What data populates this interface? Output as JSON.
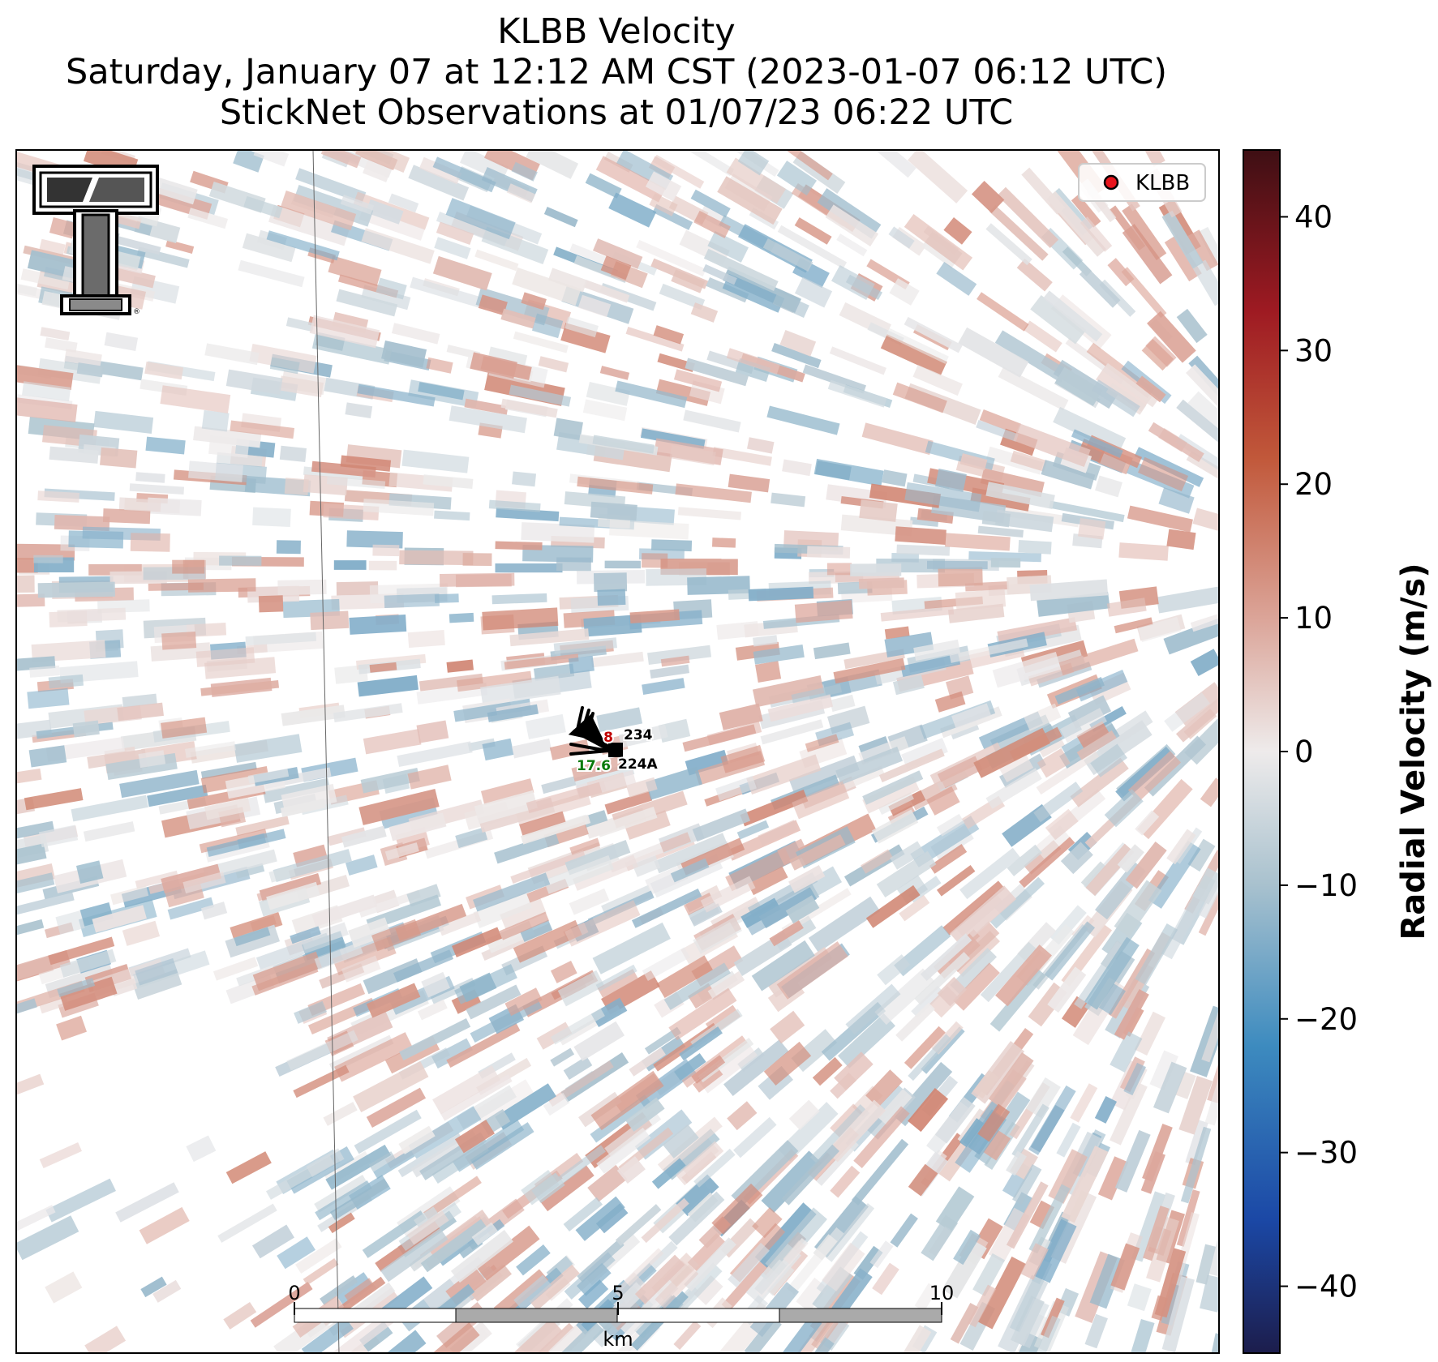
{
  "title": {
    "line1": "KLBB Velocity",
    "line2": "Saturday, January 07 at 12:12 AM CST (2023-01-07 06:12 UTC)",
    "line3": "StickNet Observations at 01/07/23 06:22 UTC"
  },
  "map": {
    "product": "Radial Velocity",
    "radar": "KLBB",
    "logo": "texas-tech-double-t-logo",
    "legend": {
      "entries": [
        {
          "label": "KLBB",
          "marker_color": "#e8141c"
        }
      ],
      "placement": "top-right"
    },
    "observations": [
      {
        "station": "234",
        "value": "8",
        "value_color": "#c00000"
      },
      {
        "station": "224A",
        "value": "17.6",
        "value_color": "#0a7a0a"
      }
    ],
    "scale_bar": {
      "unit": "km",
      "ticks": [
        "0",
        "5",
        "10"
      ]
    }
  },
  "colorbar": {
    "label": "Radial Velocity (m/s)",
    "range": [
      -45,
      45
    ],
    "ticks": [
      {
        "value": 40,
        "label": "40"
      },
      {
        "value": 30,
        "label": "30"
      },
      {
        "value": 20,
        "label": "20"
      },
      {
        "value": 10,
        "label": "10"
      },
      {
        "value": 0,
        "label": "0"
      },
      {
        "value": -10,
        "label": "−10"
      },
      {
        "value": -20,
        "label": "−20"
      },
      {
        "value": -30,
        "label": "−30"
      },
      {
        "value": -40,
        "label": "−40"
      }
    ],
    "stops": [
      {
        "value": -45,
        "color": "#1c1d4c"
      },
      {
        "value": -35,
        "color": "#1b48a6"
      },
      {
        "value": -22,
        "color": "#3d8bbf"
      },
      {
        "value": -10,
        "color": "#a8c1ce"
      },
      {
        "value": 0,
        "color": "#eeebeb"
      },
      {
        "value": 10,
        "color": "#dba498"
      },
      {
        "value": 22,
        "color": "#c1583a"
      },
      {
        "value": 33,
        "color": "#9e1a22"
      },
      {
        "value": 45,
        "color": "#3e0f14"
      }
    ]
  }
}
